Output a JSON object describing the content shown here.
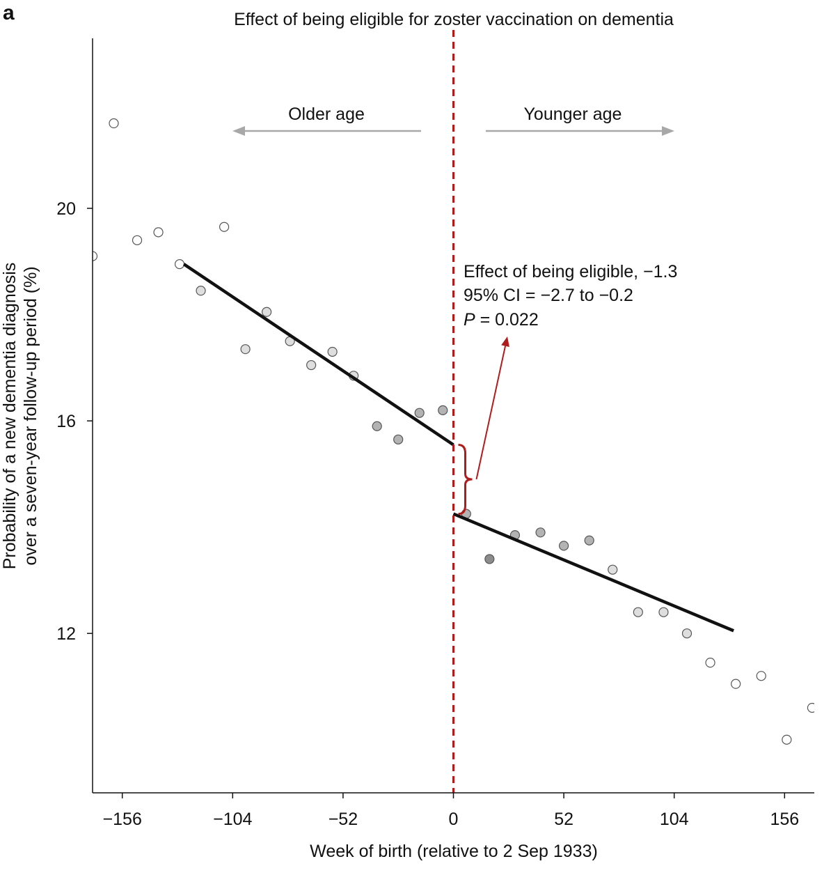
{
  "panel_label": "a",
  "chart_data": {
    "type": "scatter",
    "title": "Effect of being eligible for zoster vaccination on dementia",
    "xlabel": "Week of birth (relative to 2 Sep 1933)",
    "ylabel_lines": [
      "Probability of a new dementia diagnosis",
      "over a seven-year follow-up period (%)"
    ],
    "xlim": [
      -170,
      170
    ],
    "ylim": [
      9.0,
      23.2
    ],
    "xticks": [
      -156,
      -104,
      -52,
      0,
      52,
      104,
      156
    ],
    "xtick_labels": [
      "−156",
      "−104",
      "−52",
      "0",
      "52",
      "104",
      "156"
    ],
    "yticks": [
      12,
      16,
      20
    ],
    "ytick_labels": [
      "12",
      "16",
      "20"
    ],
    "grid": false,
    "points": [
      {
        "x": -170,
        "y": 19.1,
        "shade": "white"
      },
      {
        "x": -160,
        "y": 21.6,
        "shade": "white"
      },
      {
        "x": -149,
        "y": 19.4,
        "shade": "white"
      },
      {
        "x": -139,
        "y": 19.55,
        "shade": "white"
      },
      {
        "x": -129,
        "y": 18.95,
        "shade": "white"
      },
      {
        "x": -119,
        "y": 18.45,
        "shade": "light"
      },
      {
        "x": -108,
        "y": 19.65,
        "shade": "white"
      },
      {
        "x": -98,
        "y": 17.35,
        "shade": "light"
      },
      {
        "x": -88,
        "y": 18.05,
        "shade": "light"
      },
      {
        "x": -77,
        "y": 17.5,
        "shade": "light"
      },
      {
        "x": -67,
        "y": 17.05,
        "shade": "light"
      },
      {
        "x": -57,
        "y": 17.3,
        "shade": "light"
      },
      {
        "x": -47,
        "y": 16.85,
        "shade": "light"
      },
      {
        "x": -36,
        "y": 15.9,
        "shade": "medium"
      },
      {
        "x": -26,
        "y": 15.65,
        "shade": "medium"
      },
      {
        "x": -16,
        "y": 16.15,
        "shade": "medium"
      },
      {
        "x": -5,
        "y": 16.2,
        "shade": "medium"
      },
      {
        "x": 6,
        "y": 14.25,
        "shade": "medium"
      },
      {
        "x": 17,
        "y": 13.4,
        "shade": "dark"
      },
      {
        "x": 29,
        "y": 13.85,
        "shade": "medium"
      },
      {
        "x": 41,
        "y": 13.9,
        "shade": "medium"
      },
      {
        "x": 52,
        "y": 13.65,
        "shade": "medium"
      },
      {
        "x": 64,
        "y": 13.75,
        "shade": "medium"
      },
      {
        "x": 75,
        "y": 13.2,
        "shade": "light"
      },
      {
        "x": 87,
        "y": 12.4,
        "shade": "light"
      },
      {
        "x": 99,
        "y": 12.4,
        "shade": "light"
      },
      {
        "x": 110,
        "y": 12.0,
        "shade": "light"
      },
      {
        "x": 121,
        "y": 11.45,
        "shade": "white"
      },
      {
        "x": 133,
        "y": 11.05,
        "shade": "white"
      },
      {
        "x": 145,
        "y": 11.2,
        "shade": "white"
      },
      {
        "x": 157,
        "y": 10.0,
        "shade": "white"
      },
      {
        "x": 169,
        "y": 10.6,
        "shade": "white"
      }
    ],
    "fit_lines": [
      {
        "x": [
          -127,
          0
        ],
        "y": [
          18.95,
          15.55
        ]
      },
      {
        "x": [
          0,
          132
        ],
        "y": [
          14.25,
          12.05
        ]
      }
    ],
    "cutoff_x": 0,
    "effect_bracket": {
      "x": 6,
      "y_top": 15.55,
      "y_bottom": 14.25
    },
    "side_labels": {
      "left": "Older age",
      "right": "Younger age"
    },
    "annotation": {
      "line1": "Effect of being eligible, −1.3",
      "line2": "95% CI = −2.7 to −0.2",
      "line3_italic": "P",
      "line3_rest": " = 0.022"
    },
    "colors": {
      "cutoff": "#b01c1c",
      "fit": "#111111",
      "axis": "#111111",
      "arrow_gray": "#a8a8a8",
      "point_white": "#ffffff",
      "point_light": "#dedede",
      "point_medium": "#b3b3b3",
      "point_dark": "#8c8c8c"
    }
  }
}
